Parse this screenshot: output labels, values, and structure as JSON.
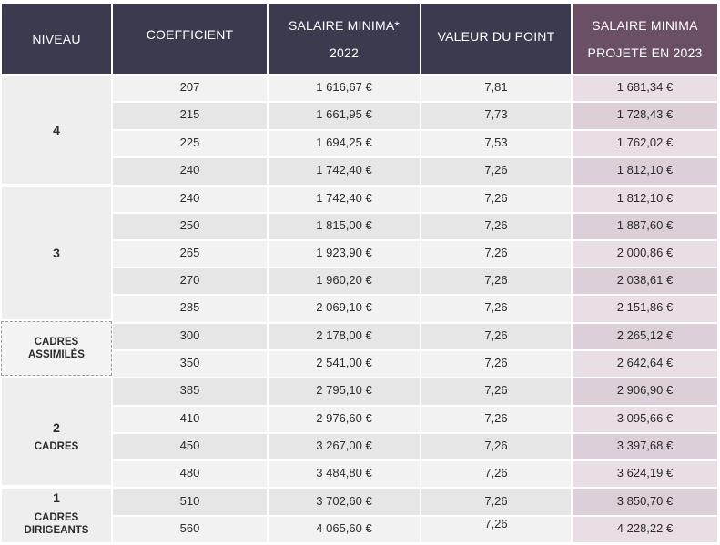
{
  "header": {
    "niveau": "NIVEAU",
    "coefficient": "COEFFICIENT",
    "salaire_2022_line1": "SALAIRE MINIMA*",
    "salaire_2022_line2": "2022",
    "valeur_point": "VALEUR DU POINT",
    "salaire_2023_line1": "SALAIRE MINIMA",
    "salaire_2023_line2": "PROJETÉ EN 2023"
  },
  "groups": [
    {
      "level": "4",
      "label": ""
    },
    {
      "level": "3",
      "label": ""
    },
    {
      "level": "",
      "label": "CADRES ASSIMILÉS"
    },
    {
      "level": "2",
      "label": "CADRES"
    },
    {
      "level": "1",
      "label": "CADRES DIRIGEANTS"
    }
  ],
  "cadres_assimiles": {
    "line1": "CADRES",
    "line2": "ASSIMILÉS"
  },
  "cadres_dirigeants": {
    "line1": "CADRES",
    "line2": "DIRIGEANTS"
  },
  "rows": [
    {
      "coefficient": "207",
      "salaire_2022": "1 616,67 €",
      "valeur_point": "7,81",
      "salaire_2023": "1 681,34 €"
    },
    {
      "coefficient": "215",
      "salaire_2022": "1 661,95 €",
      "valeur_point": "7,73",
      "salaire_2023": "1 728,43 €"
    },
    {
      "coefficient": "225",
      "salaire_2022": "1 694,25 €",
      "valeur_point": "7,53",
      "salaire_2023": "1 762,02 €"
    },
    {
      "coefficient": "240",
      "salaire_2022": "1 742,40 €",
      "valeur_point": "7,26",
      "salaire_2023": "1 812,10 €"
    },
    {
      "coefficient": "240",
      "salaire_2022": "1 742,40 €",
      "valeur_point": "7,26",
      "salaire_2023": "1 812,10 €"
    },
    {
      "coefficient": "250",
      "salaire_2022": "1 815,00 €",
      "valeur_point": "7,26",
      "salaire_2023": "1 887,60 €"
    },
    {
      "coefficient": "265",
      "salaire_2022": "1 923,90 €",
      "valeur_point": "7,26",
      "salaire_2023": "2 000,86 €"
    },
    {
      "coefficient": "270",
      "salaire_2022": "1 960,20 €",
      "valeur_point": "7,26",
      "salaire_2023": "2 038,61 €"
    },
    {
      "coefficient": "285",
      "salaire_2022": "2 069,10 €",
      "valeur_point": "7,26",
      "salaire_2023": "2 151,86 €"
    },
    {
      "coefficient": "300",
      "salaire_2022": "2 178,00 €",
      "valeur_point": "7,26",
      "salaire_2023": "2 265,12 €"
    },
    {
      "coefficient": "350",
      "salaire_2022": "2 541,00 €",
      "valeur_point": "7,26",
      "salaire_2023": "2 642,64 €"
    },
    {
      "coefficient": "385",
      "salaire_2022": "2 795,10 €",
      "valeur_point": "7,26",
      "salaire_2023": "2 906,90 €"
    },
    {
      "coefficient": "410",
      "salaire_2022": "2 976,60 €",
      "valeur_point": "7,26",
      "salaire_2023": "3 095,66 €"
    },
    {
      "coefficient": "450",
      "salaire_2022": "3 267,00 €",
      "valeur_point": "7,26",
      "salaire_2023": "3 397,68 €"
    },
    {
      "coefficient": "480",
      "salaire_2022": "3 484,80 €",
      "valeur_point": "7,26",
      "salaire_2023": "3 624,19 €"
    },
    {
      "coefficient": "510",
      "salaire_2022": "3 702,60 €",
      "valeur_point": "7,26",
      "salaire_2023": "3 850,70 €"
    },
    {
      "coefficient": "560",
      "salaire_2022": "4 065,60 €",
      "valeur_point": "7,26",
      "salaire_2023": "4 228,22 €"
    }
  ],
  "colors": {
    "header": "#3a3b4f",
    "header_projected": "#6b5065",
    "projected_row_odd": "#e9dde6",
    "projected_row_even": "#ddcfda"
  }
}
